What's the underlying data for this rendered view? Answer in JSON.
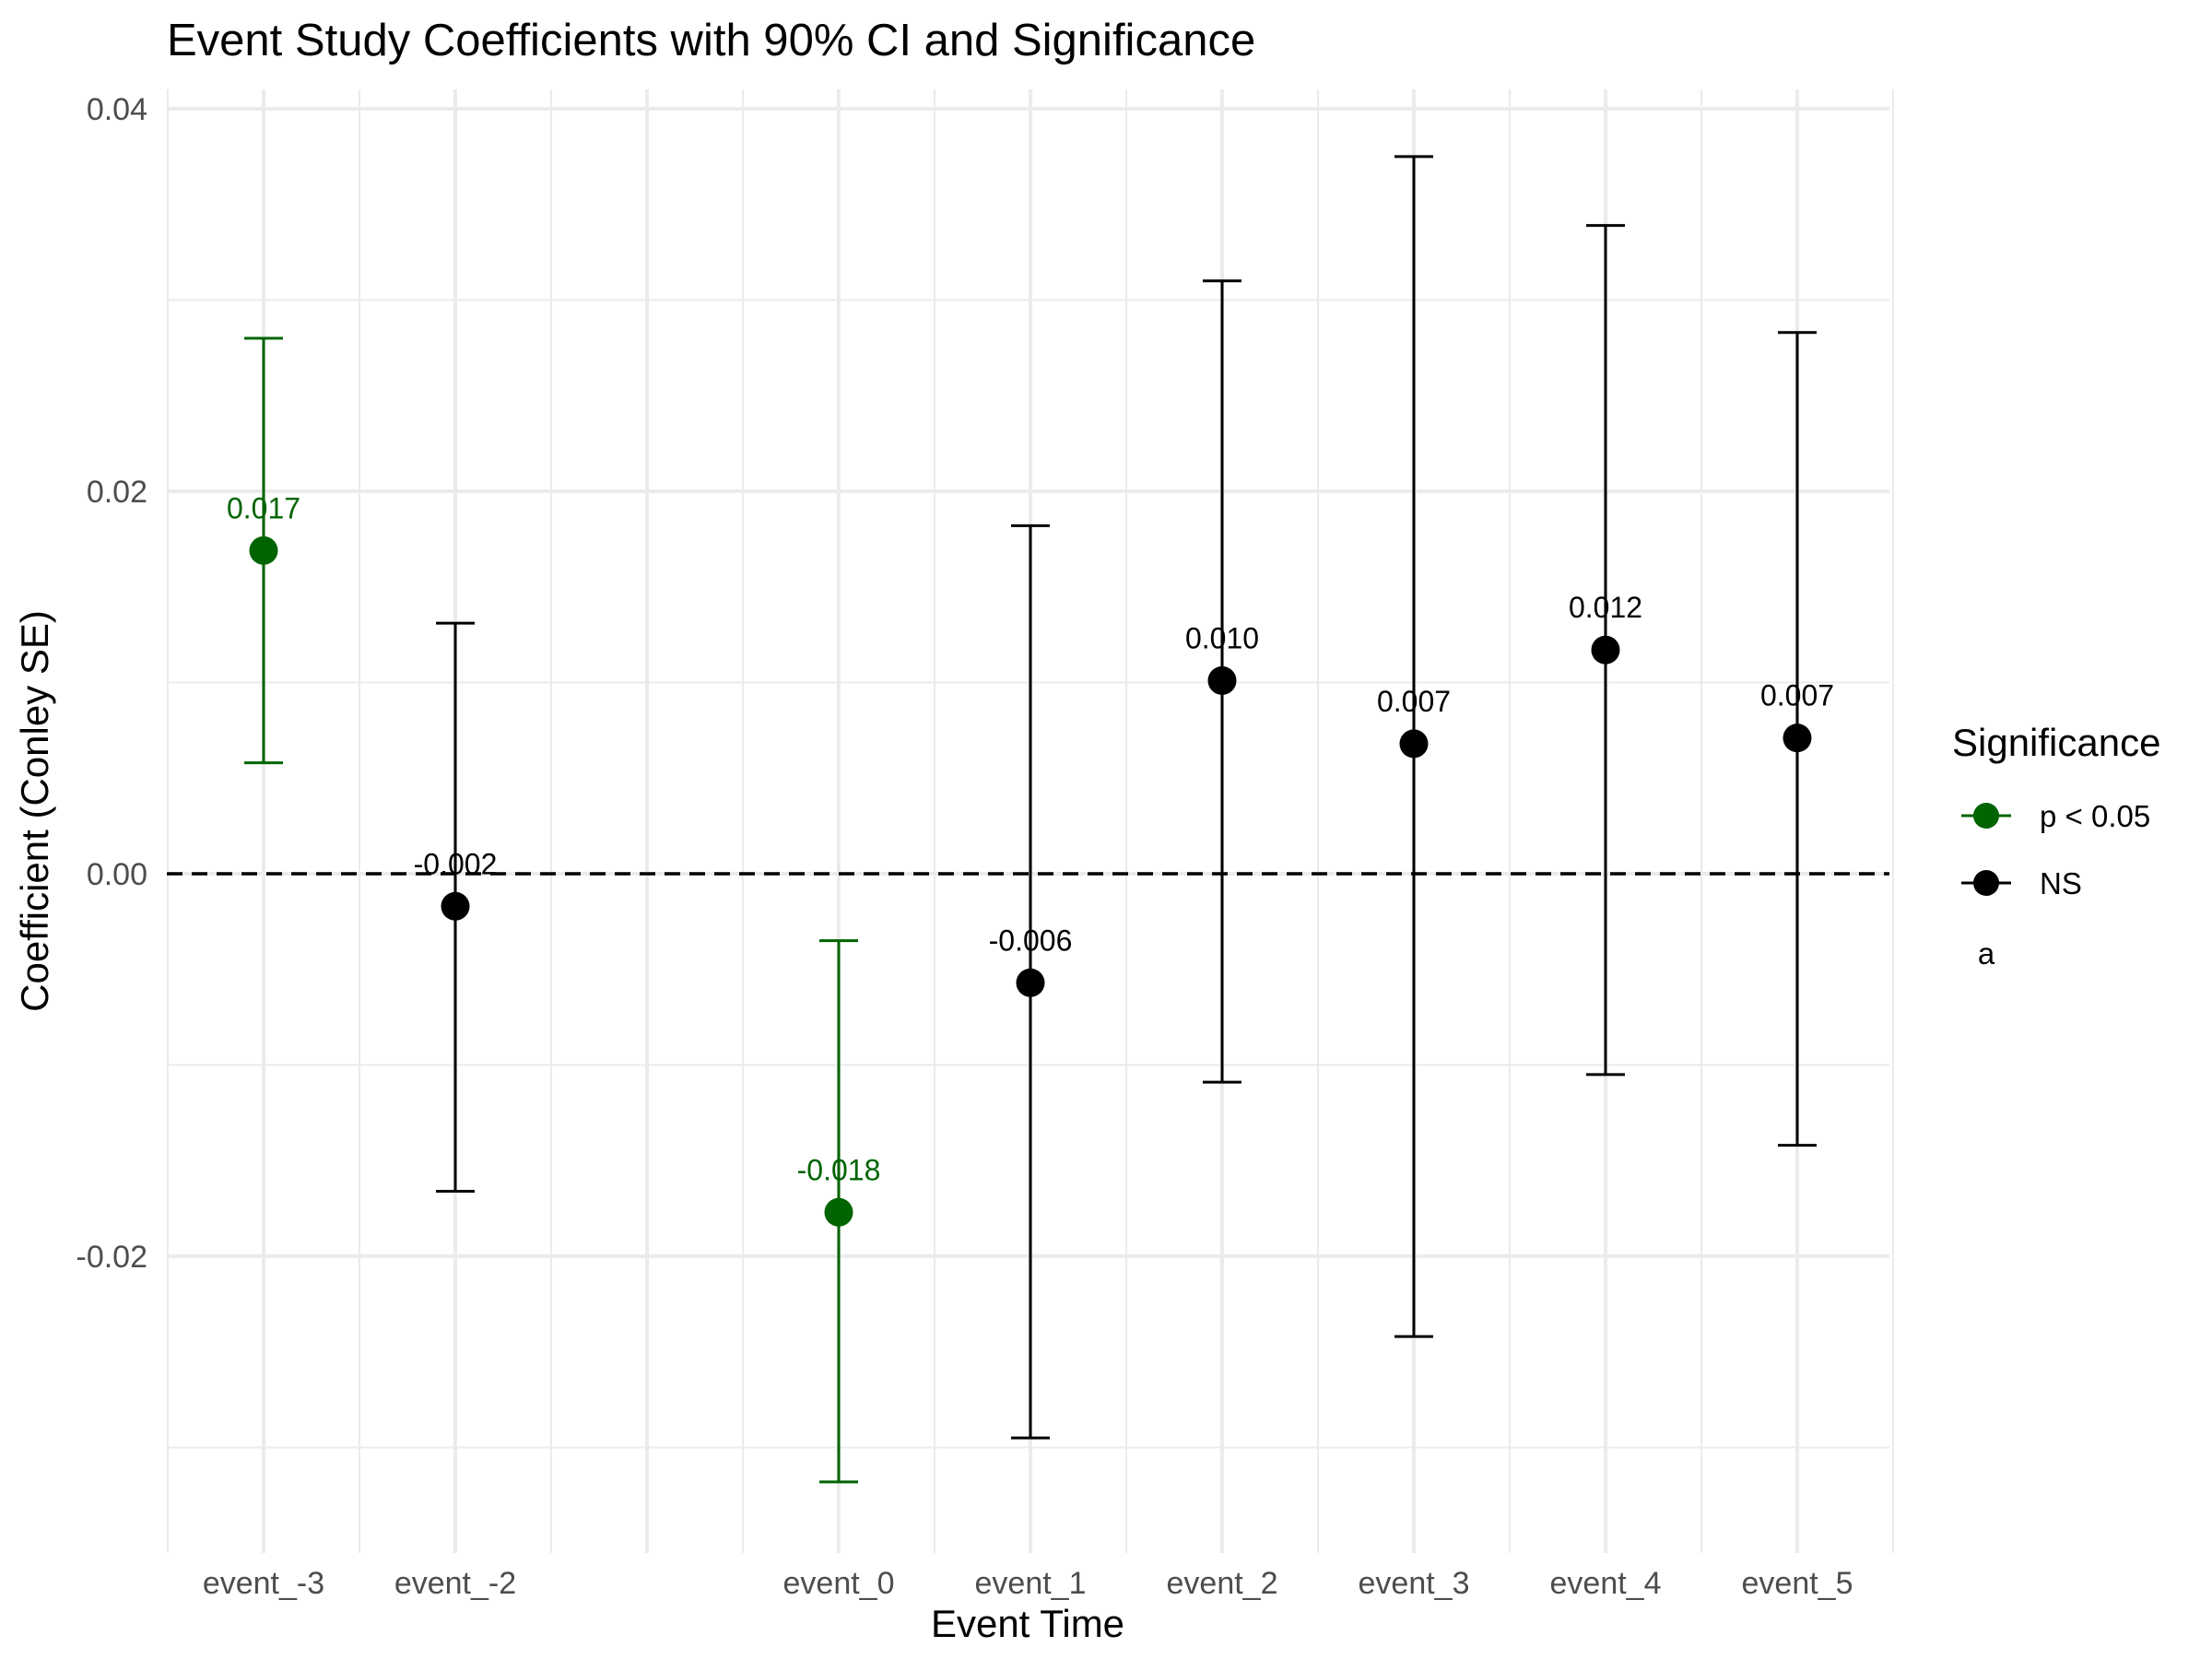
{
  "chart_data": {
    "type": "scatter",
    "title": "Event Study Coefficients with 90% CI and Significance",
    "xlabel": "Event Time",
    "ylabel": "Coefficient (Conley SE)",
    "categories": [
      "event_-3",
      "event_-2",
      "",
      "event_0",
      "event_1",
      "event_2",
      "event_3",
      "event_4",
      "event_5"
    ],
    "ylim": [
      -0.034,
      0.041
    ],
    "yticks": [
      "-0.02",
      "0.00",
      "0.02",
      "0.04"
    ],
    "ytick_values": [
      -0.02,
      0.0,
      0.02,
      0.04
    ],
    "reference_line": 0,
    "grid": true,
    "points": [
      {
        "x": "event_-3",
        "estimate": 0.0169,
        "lower": 0.0058,
        "upper": 0.028,
        "label": "0.017",
        "group": "p < 0.05"
      },
      {
        "x": "event_-2",
        "estimate": -0.0017,
        "lower": -0.0166,
        "upper": 0.0131,
        "label": "-0.002",
        "group": "NS"
      },
      {
        "x": "event_0",
        "estimate": -0.0177,
        "lower": -0.0318,
        "upper": -0.0035,
        "label": "-0.018",
        "group": "p < 0.05"
      },
      {
        "x": "event_1",
        "estimate": -0.0057,
        "lower": -0.0295,
        "upper": 0.0182,
        "label": "-0.006",
        "group": "NS"
      },
      {
        "x": "event_2",
        "estimate": 0.0101,
        "lower": -0.0109,
        "upper": 0.031,
        "label": "0.010",
        "group": "NS"
      },
      {
        "x": "event_3",
        "estimate": 0.0068,
        "lower": -0.0242,
        "upper": 0.0375,
        "label": "0.007",
        "group": "NS"
      },
      {
        "x": "event_4",
        "estimate": 0.0117,
        "lower": -0.0105,
        "upper": 0.0339,
        "label": "0.012",
        "group": "NS"
      },
      {
        "x": "event_5",
        "estimate": 0.0071,
        "lower": -0.0142,
        "upper": 0.0283,
        "label": "0.007",
        "group": "NS"
      }
    ],
    "legend": {
      "title": "Significance",
      "position": "right",
      "entries": [
        {
          "label": "p < 0.05",
          "color": "#006400"
        },
        {
          "label": "NS",
          "color": "#000000"
        }
      ],
      "extra_text": "a"
    },
    "colors": {
      "p < 0.05": "#006400",
      "NS": "#000000"
    }
  }
}
